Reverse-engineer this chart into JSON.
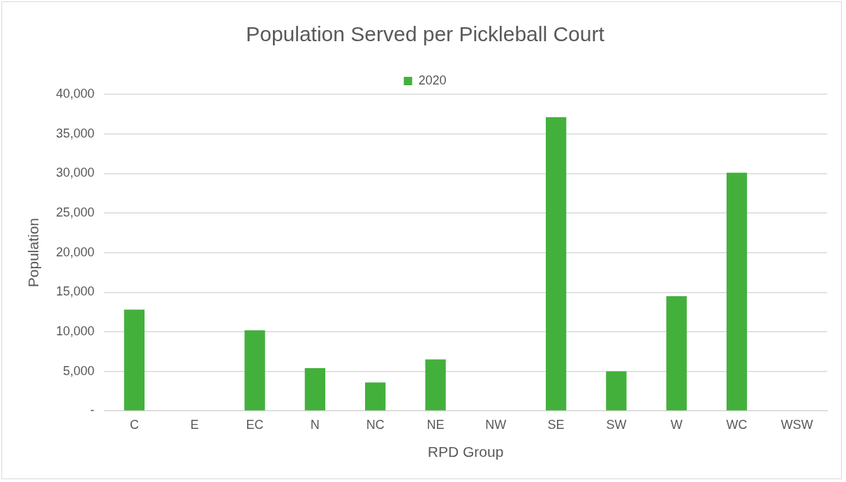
{
  "chart_data": {
    "type": "bar",
    "title": "Population Served per Pickleball Court",
    "xlabel": "RPD Group",
    "ylabel": "Population",
    "categories": [
      "C",
      "E",
      "EC",
      "N",
      "NC",
      "NE",
      "NW",
      "SE",
      "SW",
      "W",
      "WC",
      "WSW"
    ],
    "series": [
      {
        "name": "2020",
        "color": "#43b03c",
        "values": [
          12800,
          0,
          10200,
          5400,
          3600,
          6500,
          0,
          37100,
          5000,
          14500,
          30100,
          0
        ]
      }
    ],
    "ylim": [
      0,
      40000
    ],
    "yticks": [
      {
        "value": 0,
        "label": "-"
      },
      {
        "value": 5000,
        "label": "5,000"
      },
      {
        "value": 10000,
        "label": "10,000"
      },
      {
        "value": 15000,
        "label": "15,000"
      },
      {
        "value": 20000,
        "label": "20,000"
      },
      {
        "value": 25000,
        "label": "25,000"
      },
      {
        "value": 30000,
        "label": "30,000"
      },
      {
        "value": 35000,
        "label": "35,000"
      },
      {
        "value": 40000,
        "label": "40,000"
      }
    ],
    "grid": "y",
    "legend": "top"
  }
}
